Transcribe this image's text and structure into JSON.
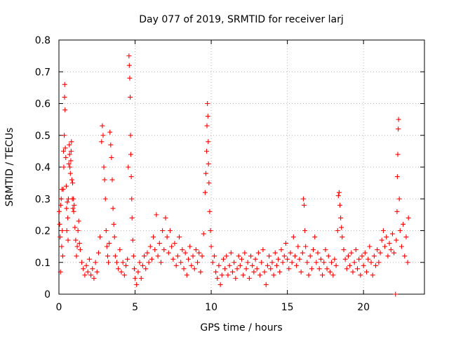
{
  "chart_data": {
    "type": "scatter",
    "title": "Day 077 of 2019, SRMTID for receiver larj",
    "xlabel": "GPS time / hours",
    "ylabel": "SRMTID / TECUs",
    "xlim": [
      0,
      24
    ],
    "ylim": [
      0,
      0.8
    ],
    "x_ticks": [
      0,
      5,
      10,
      15,
      20
    ],
    "x_tick_labels": [
      "0",
      "5",
      "10",
      "15",
      "20"
    ],
    "y_ticks": [
      0,
      0.1,
      0.2,
      0.3,
      0.4,
      0.5,
      0.6,
      0.7,
      0.8
    ],
    "y_tick_labels": [
      "0",
      "0.1",
      "0.2",
      "0.3",
      "0.4",
      "0.5",
      "0.6",
      "0.7",
      "0.8"
    ],
    "grid": true,
    "marker": "+",
    "color": "#ff0000",
    "series": [
      {
        "name": "SRMTID",
        "points": [
          [
            0.02,
            0.26
          ],
          [
            0.05,
            0.22
          ],
          [
            0.08,
            0.18
          ],
          [
            0.1,
            0.07
          ],
          [
            0.12,
            0.28
          ],
          [
            0.15,
            0.3
          ],
          [
            0.18,
            0.15
          ],
          [
            0.2,
            0.33
          ],
          [
            0.22,
            0.2
          ],
          [
            0.25,
            0.12
          ],
          [
            0.28,
            0.33
          ],
          [
            0.3,
            0.45
          ],
          [
            0.32,
            0.4
          ],
          [
            0.35,
            0.5
          ],
          [
            0.37,
            0.62
          ],
          [
            0.38,
            0.66
          ],
          [
            0.4,
            0.58
          ],
          [
            0.42,
            0.46
          ],
          [
            0.45,
            0.43
          ],
          [
            0.48,
            0.34
          ],
          [
            0.5,
            0.27
          ],
          [
            0.52,
            0.2
          ],
          [
            0.55,
            0.29
          ],
          [
            0.58,
            0.24
          ],
          [
            0.6,
            0.17
          ],
          [
            0.62,
            0.3
          ],
          [
            0.65,
            0.41
          ],
          [
            0.68,
            0.47
          ],
          [
            0.7,
            0.44
          ],
          [
            0.72,
            0.4
          ],
          [
            0.75,
            0.38
          ],
          [
            0.78,
            0.42
          ],
          [
            0.8,
            0.45
          ],
          [
            0.82,
            0.48
          ],
          [
            0.85,
            0.36
          ],
          [
            0.88,
            0.3
          ],
          [
            0.9,
            0.35
          ],
          [
            0.92,
            0.27
          ],
          [
            0.95,
            0.3
          ],
          [
            0.97,
            0.26
          ],
          [
            1.0,
            0.28
          ],
          [
            1.05,
            0.21
          ],
          [
            1.1,
            0.17
          ],
          [
            1.15,
            0.12
          ],
          [
            1.2,
            0.15
          ],
          [
            1.25,
            0.2
          ],
          [
            1.3,
            0.23
          ],
          [
            1.35,
            0.16
          ],
          [
            1.4,
            0.14
          ],
          [
            1.5,
            0.1
          ],
          [
            1.6,
            0.08
          ],
          [
            1.7,
            0.06
          ],
          [
            1.8,
            0.09
          ],
          [
            1.9,
            0.07
          ],
          [
            2.0,
            0.11
          ],
          [
            2.1,
            0.06
          ],
          [
            2.2,
            0.08
          ],
          [
            2.3,
            0.05
          ],
          [
            2.4,
            0.1
          ],
          [
            2.5,
            0.07
          ],
          [
            2.6,
            0.13
          ],
          [
            2.7,
            0.18
          ],
          [
            2.8,
            0.48
          ],
          [
            2.85,
            0.53
          ],
          [
            2.9,
            0.5
          ],
          [
            2.95,
            0.4
          ],
          [
            3.0,
            0.36
          ],
          [
            3.05,
            0.3
          ],
          [
            3.1,
            0.2
          ],
          [
            3.15,
            0.15
          ],
          [
            3.2,
            0.12
          ],
          [
            3.25,
            0.1
          ],
          [
            3.3,
            0.16
          ],
          [
            3.35,
            0.51
          ],
          [
            3.4,
            0.47
          ],
          [
            3.45,
            0.43
          ],
          [
            3.5,
            0.36
          ],
          [
            3.55,
            0.27
          ],
          [
            3.6,
            0.22
          ],
          [
            3.65,
            0.18
          ],
          [
            3.7,
            0.12
          ],
          [
            3.8,
            0.1
          ],
          [
            3.9,
            0.08
          ],
          [
            4.0,
            0.14
          ],
          [
            4.1,
            0.07
          ],
          [
            4.2,
            0.1
          ],
          [
            4.3,
            0.06
          ],
          [
            4.4,
            0.09
          ],
          [
            4.5,
            0.11
          ],
          [
            4.55,
            0.4
          ],
          [
            4.6,
            0.75
          ],
          [
            4.62,
            0.72
          ],
          [
            4.65,
            0.68
          ],
          [
            4.68,
            0.62
          ],
          [
            4.7,
            0.5
          ],
          [
            4.72,
            0.44
          ],
          [
            4.75,
            0.37
          ],
          [
            4.78,
            0.3
          ],
          [
            4.8,
            0.24
          ],
          [
            4.85,
            0.17
          ],
          [
            4.9,
            0.12
          ],
          [
            4.95,
            0.08
          ],
          [
            5.0,
            0.05
          ],
          [
            5.1,
            0.03
          ],
          [
            5.2,
            0.07
          ],
          [
            5.3,
            0.1
          ],
          [
            5.4,
            0.05
          ],
          [
            5.5,
            0.09
          ],
          [
            5.6,
            0.12
          ],
          [
            5.7,
            0.08
          ],
          [
            5.8,
            0.13
          ],
          [
            5.9,
            0.1
          ],
          [
            6.0,
            0.15
          ],
          [
            6.1,
            0.11
          ],
          [
            6.2,
            0.18
          ],
          [
            6.3,
            0.14
          ],
          [
            6.4,
            0.25
          ],
          [
            6.5,
            0.12
          ],
          [
            6.6,
            0.16
          ],
          [
            6.7,
            0.1
          ],
          [
            6.8,
            0.2
          ],
          [
            6.9,
            0.14
          ],
          [
            7.0,
            0.24
          ],
          [
            7.1,
            0.18
          ],
          [
            7.2,
            0.13
          ],
          [
            7.3,
            0.2
          ],
          [
            7.4,
            0.15
          ],
          [
            7.5,
            0.11
          ],
          [
            7.6,
            0.16
          ],
          [
            7.7,
            0.09
          ],
          [
            7.8,
            0.12
          ],
          [
            7.9,
            0.18
          ],
          [
            8.0,
            0.1
          ],
          [
            8.1,
            0.14
          ],
          [
            8.2,
            0.08
          ],
          [
            8.3,
            0.13
          ],
          [
            8.4,
            0.06
          ],
          [
            8.5,
            0.11
          ],
          [
            8.6,
            0.15
          ],
          [
            8.7,
            0.09
          ],
          [
            8.8,
            0.12
          ],
          [
            8.9,
            0.08
          ],
          [
            9.0,
            0.14
          ],
          [
            9.1,
            0.1
          ],
          [
            9.2,
            0.13
          ],
          [
            9.3,
            0.07
          ],
          [
            9.4,
            0.12
          ],
          [
            9.5,
            0.19
          ],
          [
            9.6,
            0.32
          ],
          [
            9.65,
            0.38
          ],
          [
            9.7,
            0.45
          ],
          [
            9.72,
            0.53
          ],
          [
            9.75,
            0.6
          ],
          [
            9.78,
            0.56
          ],
          [
            9.8,
            0.48
          ],
          [
            9.82,
            0.41
          ],
          [
            9.85,
            0.35
          ],
          [
            9.9,
            0.26
          ],
          [
            9.95,
            0.2
          ],
          [
            10.0,
            0.15
          ],
          [
            10.1,
            0.1
          ],
          [
            10.2,
            0.12
          ],
          [
            10.3,
            0.07
          ],
          [
            10.4,
            0.05
          ],
          [
            10.5,
            0.09
          ],
          [
            10.6,
            0.03
          ],
          [
            10.7,
            0.06
          ],
          [
            10.8,
            0.11
          ],
          [
            10.9,
            0.08
          ],
          [
            11.0,
            0.12
          ],
          [
            11.1,
            0.06
          ],
          [
            11.2,
            0.09
          ],
          [
            11.3,
            0.13
          ],
          [
            11.4,
            0.07
          ],
          [
            11.5,
            0.1
          ],
          [
            11.6,
            0.05
          ],
          [
            11.7,
            0.08
          ],
          [
            11.8,
            0.12
          ],
          [
            11.9,
            0.09
          ],
          [
            12.0,
            0.11
          ],
          [
            12.1,
            0.06
          ],
          [
            12.2,
            0.13
          ],
          [
            12.3,
            0.08
          ],
          [
            12.4,
            0.1
          ],
          [
            12.5,
            0.05
          ],
          [
            12.6,
            0.12
          ],
          [
            12.7,
            0.09
          ],
          [
            12.8,
            0.07
          ],
          [
            12.9,
            0.11
          ],
          [
            13.0,
            0.08
          ],
          [
            13.1,
            0.13
          ],
          [
            13.2,
            0.06
          ],
          [
            13.3,
            0.1
          ],
          [
            13.4,
            0.14
          ],
          [
            13.5,
            0.07
          ],
          [
            13.6,
            0.03
          ],
          [
            13.7,
            0.09
          ],
          [
            13.8,
            0.12
          ],
          [
            13.9,
            0.08
          ],
          [
            14.0,
            0.1
          ],
          [
            14.1,
            0.06
          ],
          [
            14.2,
            0.13
          ],
          [
            14.3,
            0.09
          ],
          [
            14.4,
            0.11
          ],
          [
            14.5,
            0.07
          ],
          [
            14.6,
            0.14
          ],
          [
            14.7,
            0.1
          ],
          [
            14.8,
            0.12
          ],
          [
            14.9,
            0.16
          ],
          [
            15.0,
            0.11
          ],
          [
            15.1,
            0.08
          ],
          [
            15.2,
            0.13
          ],
          [
            15.3,
            0.1
          ],
          [
            15.4,
            0.18
          ],
          [
            15.5,
            0.12
          ],
          [
            15.6,
            0.09
          ],
          [
            15.7,
            0.15
          ],
          [
            15.8,
            0.11
          ],
          [
            15.9,
            0.07
          ],
          [
            16.0,
            0.13
          ],
          [
            16.05,
            0.3
          ],
          [
            16.1,
            0.28
          ],
          [
            16.15,
            0.2
          ],
          [
            16.2,
            0.15
          ],
          [
            16.3,
            0.1
          ],
          [
            16.4,
            0.06
          ],
          [
            16.5,
            0.12
          ],
          [
            16.6,
            0.08
          ],
          [
            16.7,
            0.14
          ],
          [
            16.8,
            0.18
          ],
          [
            16.9,
            0.1
          ],
          [
            17.0,
            0.13
          ],
          [
            17.1,
            0.08
          ],
          [
            17.2,
            0.11
          ],
          [
            17.3,
            0.06
          ],
          [
            17.4,
            0.1
          ],
          [
            17.5,
            0.14
          ],
          [
            17.6,
            0.08
          ],
          [
            17.7,
            0.12
          ],
          [
            17.8,
            0.07
          ],
          [
            17.9,
            0.1
          ],
          [
            18.0,
            0.06
          ],
          [
            18.1,
            0.11
          ],
          [
            18.2,
            0.09
          ],
          [
            18.3,
            0.2
          ],
          [
            18.35,
            0.31
          ],
          [
            18.4,
            0.32
          ],
          [
            18.45,
            0.28
          ],
          [
            18.5,
            0.24
          ],
          [
            18.55,
            0.21
          ],
          [
            18.6,
            0.18
          ],
          [
            18.7,
            0.14
          ],
          [
            18.8,
            0.11
          ],
          [
            18.9,
            0.08
          ],
          [
            19.0,
            0.12
          ],
          [
            19.1,
            0.09
          ],
          [
            19.2,
            0.13
          ],
          [
            19.3,
            0.07
          ],
          [
            19.4,
            0.1
          ],
          [
            19.5,
            0.14
          ],
          [
            19.6,
            0.08
          ],
          [
            19.7,
            0.11
          ],
          [
            19.8,
            0.06
          ],
          [
            19.9,
            0.12
          ],
          [
            20.0,
            0.09
          ],
          [
            20.1,
            0.13
          ],
          [
            20.2,
            0.07
          ],
          [
            20.3,
            0.11
          ],
          [
            20.4,
            0.15
          ],
          [
            20.5,
            0.1
          ],
          [
            20.6,
            0.06
          ],
          [
            20.7,
            0.12
          ],
          [
            20.8,
            0.09
          ],
          [
            20.9,
            0.14
          ],
          [
            21.0,
            0.1
          ],
          [
            21.1,
            0.13
          ],
          [
            21.2,
            0.17
          ],
          [
            21.3,
            0.2
          ],
          [
            21.4,
            0.15
          ],
          [
            21.5,
            0.18
          ],
          [
            21.6,
            0.12
          ],
          [
            21.7,
            0.16
          ],
          [
            21.8,
            0.14
          ],
          [
            21.9,
            0.19
          ],
          [
            22.0,
            0.13
          ],
          [
            22.1,
            0.0
          ],
          [
            22.15,
            0.17
          ],
          [
            22.2,
            0.26
          ],
          [
            22.22,
            0.37
          ],
          [
            22.25,
            0.44
          ],
          [
            22.28,
            0.52
          ],
          [
            22.3,
            0.55
          ],
          [
            22.35,
            0.3
          ],
          [
            22.4,
            0.2
          ],
          [
            22.5,
            0.15
          ],
          [
            22.6,
            0.22
          ],
          [
            22.7,
            0.12
          ],
          [
            22.8,
            0.18
          ],
          [
            22.9,
            0.1
          ],
          [
            22.95,
            0.24
          ]
        ]
      }
    ]
  }
}
